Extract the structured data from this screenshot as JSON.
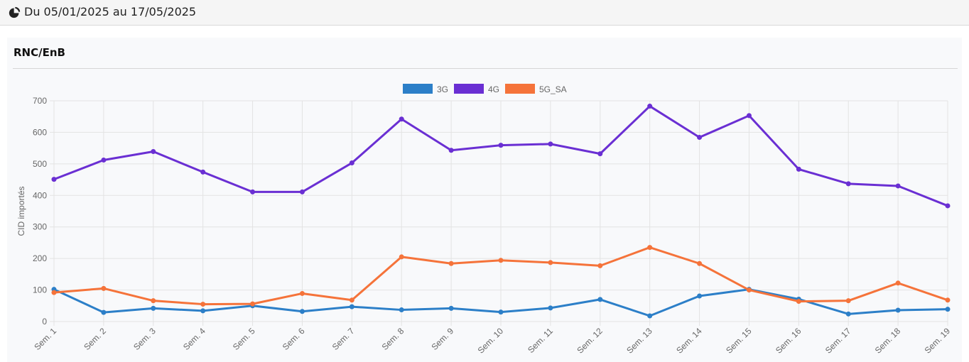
{
  "header": {
    "date_range": "Du 05/01/2025 au 17/05/2025",
    "icon": "pie-chart-icon"
  },
  "panel": {
    "title": "RNC/EnB"
  },
  "chart_data": {
    "type": "line",
    "ylabel": "CID importés",
    "xlabel": "",
    "ylim": [
      0,
      700
    ],
    "yticks": [
      0,
      100,
      200,
      300,
      400,
      500,
      600,
      700
    ],
    "grid": true,
    "legend_position": "top-center",
    "categories": [
      "Sem. 1",
      "Sem. 2",
      "Sem. 3",
      "Sem. 4",
      "Sem. 5",
      "Sem. 6",
      "Sem. 7",
      "Sem. 8",
      "Sem. 9",
      "Sem. 10",
      "Sem. 11",
      "Sem. 12",
      "Sem. 13",
      "Sem. 14",
      "Sem. 15",
      "Sem. 16",
      "Sem. 17",
      "Sem. 18",
      "Sem. 19"
    ],
    "series": [
      {
        "name": "3G",
        "color": "#2c7fc8",
        "values": [
          102,
          29,
          42,
          34,
          50,
          32,
          47,
          37,
          42,
          30,
          43,
          70,
          18,
          81,
          102,
          71,
          24,
          36,
          39
        ]
      },
      {
        "name": "4G",
        "color": "#6a2fd3",
        "values": [
          451,
          512,
          539,
          474,
          411,
          411,
          503,
          642,
          543,
          559,
          563,
          532,
          683,
          584,
          653,
          483,
          437,
          430,
          367
        ]
      },
      {
        "name": "5G_SA",
        "color": "#f5733a",
        "values": [
          92,
          105,
          66,
          55,
          56,
          89,
          68,
          205,
          184,
          194,
          187,
          177,
          235,
          184,
          100,
          64,
          66,
          122,
          68
        ]
      }
    ]
  }
}
